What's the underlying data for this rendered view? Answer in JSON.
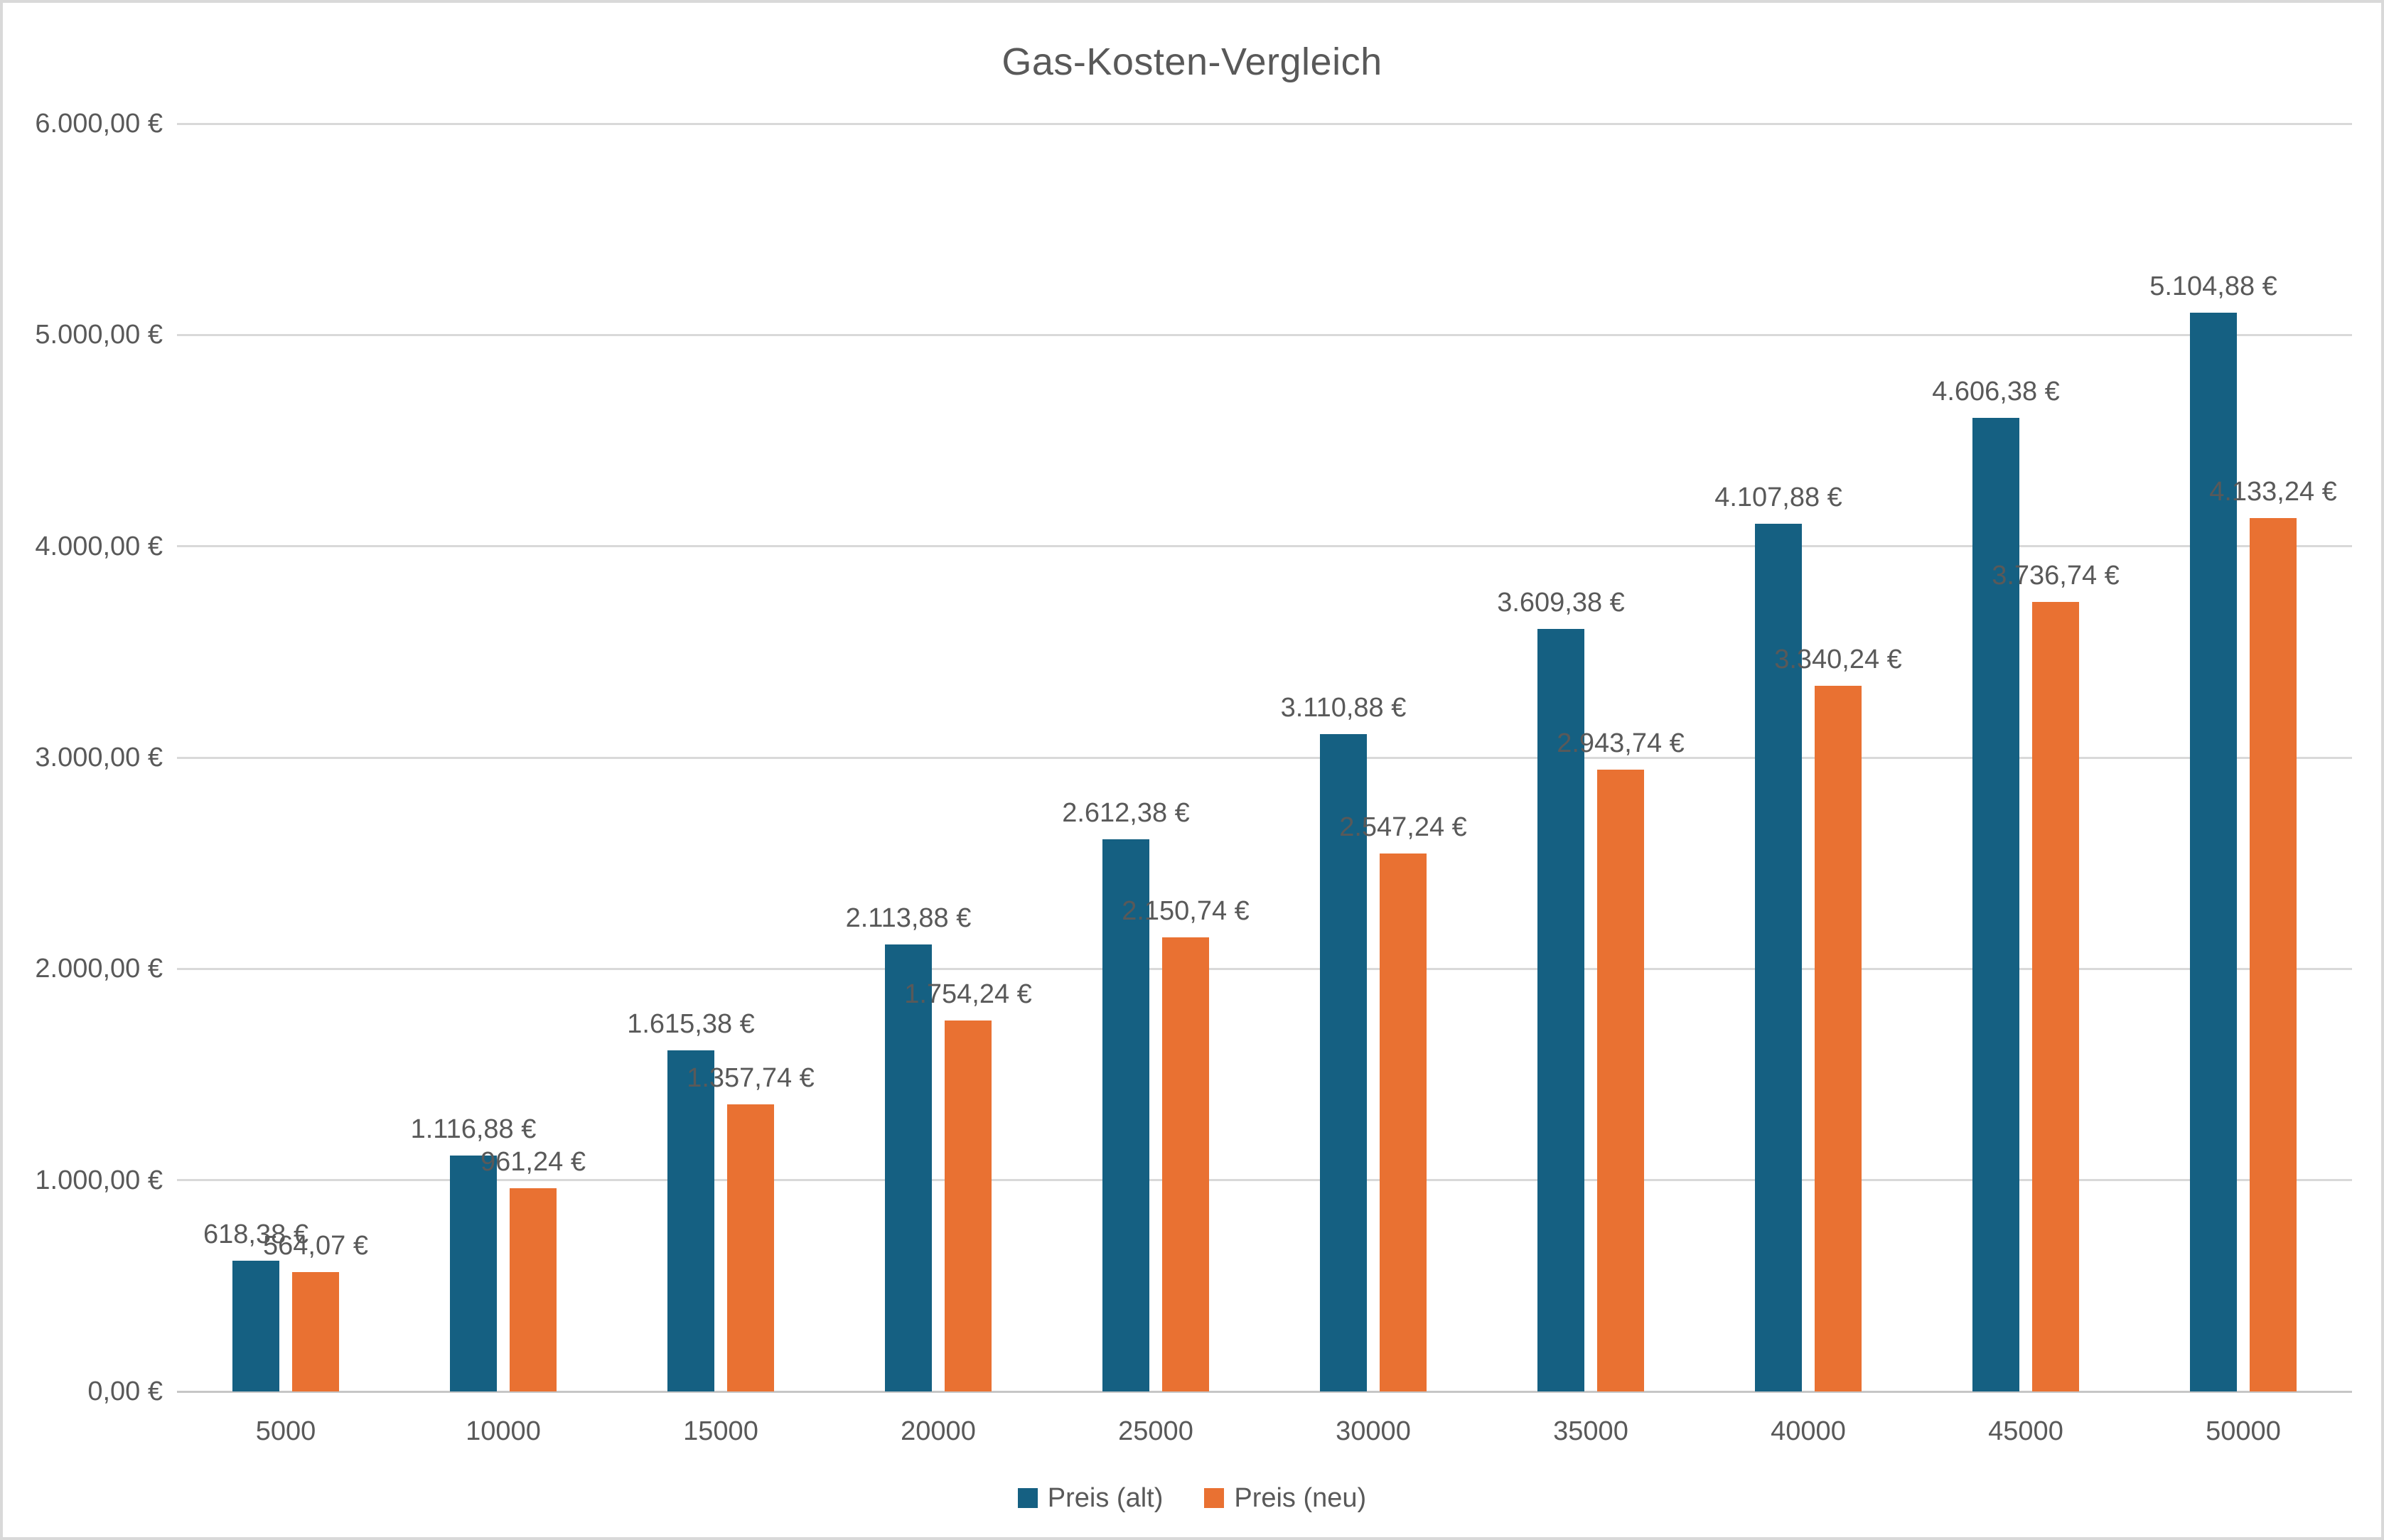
{
  "chart_data": {
    "type": "bar",
    "title": "Gas-Kosten-Vergleich",
    "categories": [
      "5000",
      "10000",
      "15000",
      "20000",
      "25000",
      "30000",
      "35000",
      "40000",
      "45000",
      "50000"
    ],
    "series": [
      {
        "name": "Preis (alt)",
        "color": "#156082",
        "values": [
          618.38,
          1116.88,
          1615.38,
          2113.88,
          2612.38,
          3110.88,
          3609.38,
          4107.88,
          4606.38,
          5104.88
        ],
        "labels": [
          "618,38 €",
          "1.116,88 €",
          "1.615,38 €",
          "2.113,88 €",
          "2.612,38 €",
          "3.110,88 €",
          "3.609,38 €",
          "4.107,88 €",
          "4.606,38 €",
          "5.104,88 €"
        ]
      },
      {
        "name": "Preis (neu)",
        "color": "#e97132",
        "values": [
          564.07,
          961.24,
          1357.74,
          1754.24,
          2150.74,
          2547.24,
          2943.74,
          3340.24,
          3736.74,
          4133.24
        ],
        "labels": [
          "564,07 €",
          "961,24 €",
          "1.357,74 €",
          "1.754,24 €",
          "2.150,74 €",
          "2.547,24 €",
          "2.943,74 €",
          "3.340,24 €",
          "3.736,74 €",
          "4.133,24 €"
        ]
      }
    ],
    "y_axis": {
      "min": 0,
      "max": 6000,
      "step": 1000,
      "ticks": [
        "0,00 €",
        "1.000,00 €",
        "2.000,00 €",
        "3.000,00 €",
        "4.000,00 €",
        "5.000,00 €",
        "6.000,00 €"
      ]
    },
    "x_axis": {
      "label": ""
    },
    "legend_position": "bottom",
    "grid": true,
    "colors": {
      "text": "#595959",
      "gridline": "#d9d9d9",
      "axis": "#c6c6c6",
      "background": "#ffffff",
      "border": "#d9d9d9"
    }
  }
}
